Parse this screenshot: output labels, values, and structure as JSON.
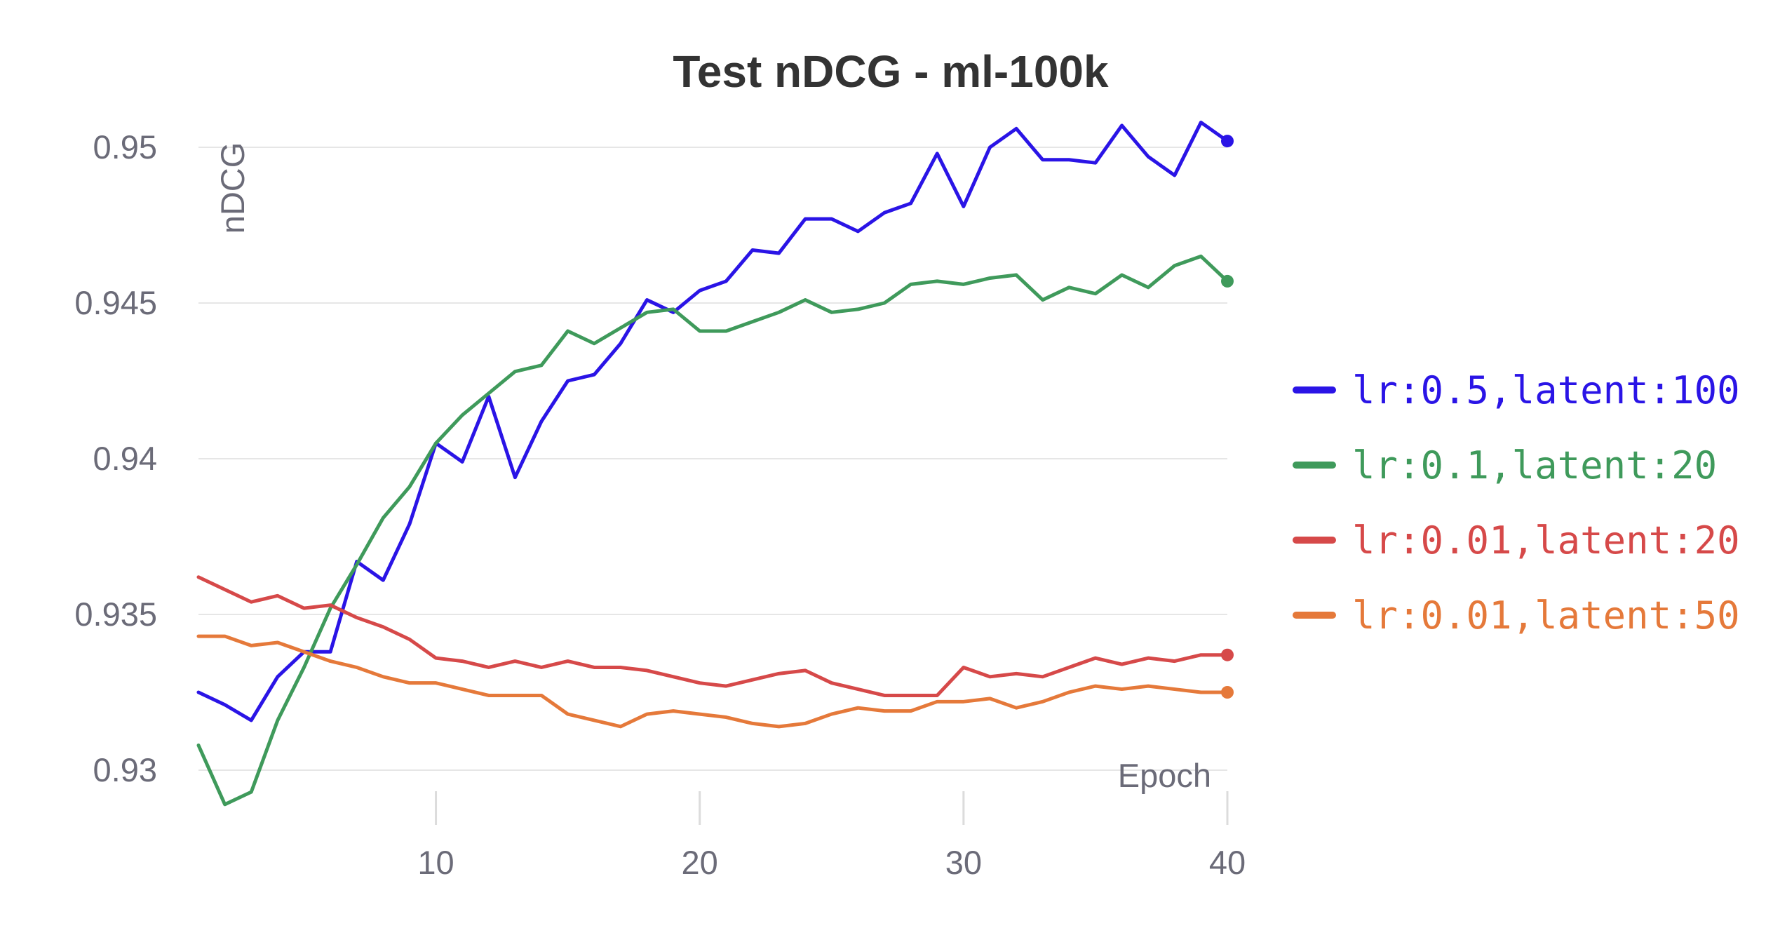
{
  "chart_data": {
    "type": "line",
    "title": "Test nDCG - ml-100k",
    "xlabel": "Epoch",
    "ylabel": "nDCG",
    "xlim": [
      1,
      40
    ],
    "ylim": [
      0.9285,
      0.9515
    ],
    "x_ticks": [
      10,
      20,
      30,
      40
    ],
    "y_ticks": [
      0.93,
      0.935,
      0.94,
      0.945,
      0.95
    ],
    "y_tick_labels": [
      "0.93",
      "0.935",
      "0.94",
      "0.945",
      "0.95"
    ],
    "x_tick_labels": [
      "10",
      "20",
      "30",
      "40"
    ],
    "grid": "horizontal",
    "legend_position": "right",
    "x": [
      1,
      2,
      3,
      4,
      5,
      6,
      7,
      8,
      9,
      10,
      11,
      12,
      13,
      14,
      15,
      16,
      17,
      18,
      19,
      20,
      21,
      22,
      23,
      24,
      25,
      26,
      27,
      28,
      29,
      30,
      31,
      32,
      33,
      34,
      35,
      36,
      37,
      38,
      39,
      40
    ],
    "series": [
      {
        "name": "lr:0.5,latent:100",
        "color": "#2a14e6",
        "values": [
          0.9325,
          0.9321,
          0.9316,
          0.933,
          0.9338,
          0.9338,
          0.9367,
          0.9361,
          0.9379,
          0.9405,
          0.9399,
          0.942,
          0.9394,
          0.9412,
          0.9425,
          0.9427,
          0.9437,
          0.9451,
          0.9447,
          0.9454,
          0.9457,
          0.9467,
          0.9466,
          0.9477,
          0.9477,
          0.9473,
          0.9479,
          0.9482,
          0.9498,
          0.9481,
          0.95,
          0.9506,
          0.9496,
          0.9496,
          0.9495,
          0.9507,
          0.9497,
          0.9491,
          0.9508,
          0.9502
        ]
      },
      {
        "name": "lr:0.1,latent:20",
        "color": "#3f9a5b",
        "values": [
          0.9308,
          0.9289,
          0.9293,
          0.9316,
          0.9333,
          0.9352,
          0.9366,
          0.9381,
          0.9391,
          0.9405,
          0.9414,
          0.9421,
          0.9428,
          0.943,
          0.9441,
          0.9437,
          0.9442,
          0.9447,
          0.9448,
          0.9441,
          0.9441,
          0.9444,
          0.9447,
          0.9451,
          0.9447,
          0.9448,
          0.945,
          0.9456,
          0.9457,
          0.9456,
          0.9458,
          0.9459,
          0.9451,
          0.9455,
          0.9453,
          0.9459,
          0.9455,
          0.9462,
          0.9465,
          0.9457
        ]
      },
      {
        "name": "lr:0.01,latent:20",
        "color": "#d64949",
        "values": [
          0.9362,
          0.9358,
          0.9354,
          0.9356,
          0.9352,
          0.9353,
          0.9349,
          0.9346,
          0.9342,
          0.9336,
          0.9335,
          0.9333,
          0.9335,
          0.9333,
          0.9335,
          0.9333,
          0.9333,
          0.9332,
          0.933,
          0.9328,
          0.9327,
          0.9329,
          0.9331,
          0.9332,
          0.9328,
          0.9326,
          0.9324,
          0.9324,
          0.9324,
          0.9333,
          0.933,
          0.9331,
          0.933,
          0.9333,
          0.9336,
          0.9334,
          0.9336,
          0.9335,
          0.9337,
          0.9337
        ]
      },
      {
        "name": "lr:0.01,latent:50",
        "color": "#e5793a",
        "values": [
          0.9343,
          0.9343,
          0.934,
          0.9341,
          0.9338,
          0.9335,
          0.9333,
          0.933,
          0.9328,
          0.9328,
          0.9326,
          0.9324,
          0.9324,
          0.9324,
          0.9318,
          0.9316,
          0.9314,
          0.9318,
          0.9319,
          0.9318,
          0.9317,
          0.9315,
          0.9314,
          0.9315,
          0.9318,
          0.932,
          0.9319,
          0.9319,
          0.9322,
          0.9322,
          0.9323,
          0.932,
          0.9322,
          0.9325,
          0.9327,
          0.9326,
          0.9327,
          0.9326,
          0.9325,
          0.9325
        ]
      }
    ]
  }
}
